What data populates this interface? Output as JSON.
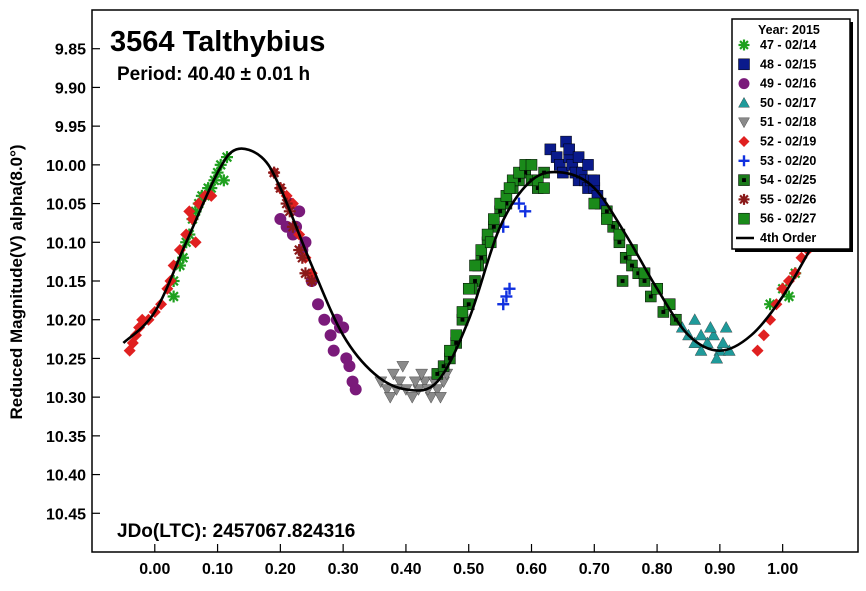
{
  "chart_data": {
    "type": "scatter",
    "title": "3564 Talthybius",
    "period_text": "Period: 40.40 ± 0.01 h",
    "epoch_text": "JDo(LTC): 2457067.824316",
    "ylabel": "Reduced Magnitude(V) alpha(8.0°)",
    "xlabel": "",
    "xlim": [
      -0.1,
      1.12
    ],
    "ylim": [
      10.5,
      9.8
    ],
    "y_inverted": true,
    "grid": false,
    "legend_position": "top-right",
    "legend_title": "Year: 2015",
    "x_ticks": [
      0.0,
      0.1,
      0.2,
      0.3,
      0.4,
      0.5,
      0.6,
      0.7,
      0.8,
      0.9,
      1.0
    ],
    "x_tick_labels": [
      "0.00",
      "0.10",
      "0.20",
      "0.30",
      "0.40",
      "0.50",
      "0.60",
      "0.70",
      "0.80",
      "0.90",
      "1.00"
    ],
    "y_ticks": [
      9.85,
      9.9,
      9.95,
      10.0,
      10.05,
      10.1,
      10.15,
      10.2,
      10.25,
      10.3,
      10.35,
      10.4,
      10.45
    ],
    "y_tick_labels": [
      "9.85",
      "9.90",
      "9.95",
      "10.00",
      "10.05",
      "10.10",
      "10.15",
      "10.20",
      "10.25",
      "10.30",
      "10.35",
      "10.40",
      "10.45"
    ],
    "series": [
      {
        "name": "47 - 02/14",
        "marker": "asterisk",
        "color": "#1fa01f",
        "points": [
          [
            0.03,
            10.15
          ],
          [
            0.045,
            10.12
          ],
          [
            0.055,
            10.09
          ],
          [
            0.065,
            10.06
          ],
          [
            0.075,
            10.04
          ],
          [
            0.085,
            10.03
          ],
          [
            0.095,
            10.02
          ],
          [
            0.105,
            10.0
          ],
          [
            0.115,
            9.99
          ],
          [
            0.05,
            10.1
          ],
          [
            0.06,
            10.07
          ],
          [
            0.07,
            10.05
          ],
          [
            0.08,
            10.04
          ],
          [
            0.09,
            10.03
          ],
          [
            0.1,
            10.01
          ],
          [
            0.11,
            10.02
          ],
          [
            1.0,
            10.16
          ],
          [
            1.01,
            10.17
          ],
          [
            0.98,
            10.18
          ],
          [
            1.02,
            10.14
          ],
          [
            0.03,
            10.17
          ],
          [
            0.04,
            10.13
          ]
        ]
      },
      {
        "name": "48 - 02/15",
        "marker": "square",
        "color": "#0a1a8c",
        "points": [
          [
            0.63,
            9.98
          ],
          [
            0.64,
            9.99
          ],
          [
            0.645,
            10.0
          ],
          [
            0.65,
            10.01
          ],
          [
            0.655,
            9.97
          ],
          [
            0.66,
            9.99
          ],
          [
            0.665,
            10.0
          ],
          [
            0.67,
            10.01
          ],
          [
            0.675,
            10.02
          ],
          [
            0.68,
            10.01
          ],
          [
            0.685,
            10.02
          ],
          [
            0.69,
            10.03
          ],
          [
            0.695,
            10.02
          ],
          [
            0.7,
            10.03
          ],
          [
            0.705,
            10.04
          ],
          [
            0.71,
            10.05
          ],
          [
            0.66,
            9.98
          ],
          [
            0.675,
            9.99
          ],
          [
            0.69,
            10.0
          ],
          [
            0.7,
            10.02
          ]
        ]
      },
      {
        "name": "49 - 02/16",
        "marker": "circle",
        "color": "#7a1a7a",
        "points": [
          [
            0.2,
            10.07
          ],
          [
            0.21,
            10.08
          ],
          [
            0.22,
            10.09
          ],
          [
            0.23,
            10.06
          ],
          [
            0.24,
            10.1
          ],
          [
            0.25,
            10.15
          ],
          [
            0.26,
            10.18
          ],
          [
            0.27,
            10.2
          ],
          [
            0.28,
            10.22
          ],
          [
            0.29,
            10.2
          ],
          [
            0.3,
            10.21
          ],
          [
            0.305,
            10.25
          ],
          [
            0.31,
            10.26
          ],
          [
            0.315,
            10.28
          ],
          [
            0.32,
            10.29
          ],
          [
            0.285,
            10.24
          ],
          [
            0.295,
            10.21
          ],
          [
            0.215,
            10.05
          ],
          [
            0.225,
            10.08
          ],
          [
            0.235,
            10.11
          ]
        ]
      },
      {
        "name": "50 - 02/17",
        "marker": "triangle-up",
        "color": "#1f9a9a",
        "points": [
          [
            0.83,
            10.2
          ],
          [
            0.84,
            10.21
          ],
          [
            0.85,
            10.22
          ],
          [
            0.86,
            10.2
          ],
          [
            0.87,
            10.22
          ],
          [
            0.88,
            10.23
          ],
          [
            0.89,
            10.22
          ],
          [
            0.9,
            10.24
          ],
          [
            0.905,
            10.23
          ],
          [
            0.91,
            10.21
          ],
          [
            0.915,
            10.24
          ],
          [
            0.87,
            10.24
          ],
          [
            0.895,
            10.25
          ],
          [
            0.885,
            10.21
          ],
          [
            0.86,
            10.23
          ]
        ]
      },
      {
        "name": "51 - 02/18",
        "marker": "triangle-down",
        "color": "#8a8a8a",
        "points": [
          [
            0.36,
            10.28
          ],
          [
            0.37,
            10.29
          ],
          [
            0.38,
            10.27
          ],
          [
            0.39,
            10.28
          ],
          [
            0.4,
            10.29
          ],
          [
            0.41,
            10.3
          ],
          [
            0.42,
            10.29
          ],
          [
            0.43,
            10.28
          ],
          [
            0.44,
            10.3
          ],
          [
            0.45,
            10.29
          ],
          [
            0.46,
            10.28
          ],
          [
            0.465,
            10.27
          ],
          [
            0.375,
            10.3
          ],
          [
            0.395,
            10.26
          ],
          [
            0.415,
            10.28
          ],
          [
            0.435,
            10.29
          ],
          [
            0.455,
            10.3
          ],
          [
            0.385,
            10.29
          ],
          [
            0.425,
            10.27
          ],
          [
            0.445,
            10.28
          ]
        ]
      },
      {
        "name": "52 - 02/19",
        "marker": "diamond",
        "color": "#e02020",
        "points": [
          [
            -0.04,
            10.24
          ],
          [
            -0.035,
            10.23
          ],
          [
            -0.03,
            10.22
          ],
          [
            -0.025,
            10.21
          ],
          [
            -0.02,
            10.2
          ],
          [
            -0.01,
            10.2
          ],
          [
            0.0,
            10.19
          ],
          [
            0.01,
            10.18
          ],
          [
            0.02,
            10.16
          ],
          [
            0.025,
            10.15
          ],
          [
            0.03,
            10.13
          ],
          [
            0.04,
            10.11
          ],
          [
            0.05,
            10.09
          ],
          [
            0.06,
            10.07
          ],
          [
            0.07,
            10.05
          ],
          [
            0.08,
            10.04
          ],
          [
            0.09,
            10.04
          ],
          [
            0.19,
            10.01
          ],
          [
            0.2,
            10.03
          ],
          [
            0.21,
            10.04
          ],
          [
            0.22,
            10.05
          ],
          [
            0.23,
            10.09
          ],
          [
            0.24,
            10.12
          ],
          [
            0.25,
            10.14
          ],
          [
            0.96,
            10.24
          ],
          [
            0.97,
            10.22
          ],
          [
            0.98,
            10.2
          ],
          [
            0.99,
            10.18
          ],
          [
            1.0,
            10.16
          ],
          [
            1.01,
            10.15
          ],
          [
            1.02,
            10.14
          ],
          [
            1.03,
            10.12
          ],
          [
            1.04,
            10.11
          ],
          [
            0.055,
            10.06
          ],
          [
            0.065,
            10.1
          ]
        ]
      },
      {
        "name": "53 - 02/20",
        "marker": "plus",
        "color": "#1030e0",
        "points": [
          [
            0.555,
            10.08
          ],
          [
            0.56,
            10.17
          ],
          [
            0.565,
            10.16
          ],
          [
            0.555,
            10.18
          ],
          [
            0.58,
            10.05
          ],
          [
            0.59,
            10.06
          ]
        ]
      },
      {
        "name": "54 - 02/25",
        "marker": "square-dot",
        "color": "#1a7a1a",
        "points": [
          [
            0.45,
            10.27
          ],
          [
            0.46,
            10.26
          ],
          [
            0.47,
            10.25
          ],
          [
            0.48,
            10.23
          ],
          [
            0.49,
            10.2
          ],
          [
            0.5,
            10.18
          ],
          [
            0.51,
            10.15
          ],
          [
            0.52,
            10.12
          ],
          [
            0.53,
            10.1
          ],
          [
            0.54,
            10.08
          ],
          [
            0.55,
            10.06
          ],
          [
            0.56,
            10.05
          ],
          [
            0.57,
            10.03
          ],
          [
            0.58,
            10.02
          ],
          [
            0.59,
            10.01
          ],
          [
            0.6,
            10.02
          ],
          [
            0.61,
            10.03
          ],
          [
            0.62,
            10.01
          ],
          [
            0.72,
            10.06
          ],
          [
            0.73,
            10.08
          ],
          [
            0.74,
            10.1
          ],
          [
            0.75,
            10.12
          ],
          [
            0.76,
            10.13
          ],
          [
            0.77,
            10.14
          ],
          [
            0.78,
            10.15
          ],
          [
            0.79,
            10.17
          ],
          [
            0.8,
            10.16
          ],
          [
            0.81,
            10.19
          ],
          [
            0.82,
            10.18
          ],
          [
            0.83,
            10.2
          ],
          [
            0.505,
            10.16
          ],
          [
            0.515,
            10.13
          ],
          [
            0.745,
            10.15
          ]
        ]
      },
      {
        "name": "55 - 02/26",
        "marker": "asterisk",
        "color": "#8a1a1a",
        "points": [
          [
            0.19,
            10.01
          ],
          [
            0.2,
            10.03
          ],
          [
            0.21,
            10.05
          ],
          [
            0.22,
            10.08
          ],
          [
            0.23,
            10.11
          ],
          [
            0.24,
            10.14
          ],
          [
            0.25,
            10.15
          ],
          [
            0.215,
            10.06
          ],
          [
            0.235,
            10.12
          ]
        ]
      },
      {
        "name": "56 - 02/27",
        "marker": "square",
        "color": "#1a8a1a",
        "points": [
          [
            0.47,
            10.24
          ],
          [
            0.48,
            10.22
          ],
          [
            0.49,
            10.19
          ],
          [
            0.5,
            10.16
          ],
          [
            0.51,
            10.13
          ],
          [
            0.52,
            10.11
          ],
          [
            0.53,
            10.09
          ],
          [
            0.54,
            10.07
          ],
          [
            0.55,
            10.05
          ],
          [
            0.56,
            10.04
          ],
          [
            0.57,
            10.02
          ],
          [
            0.58,
            10.01
          ],
          [
            0.59,
            10.0
          ],
          [
            0.6,
            10.0
          ],
          [
            0.61,
            10.02
          ],
          [
            0.62,
            10.03
          ],
          [
            0.7,
            10.05
          ],
          [
            0.72,
            10.07
          ],
          [
            0.74,
            10.09
          ],
          [
            0.76,
            10.11
          ],
          [
            0.78,
            10.14
          ],
          [
            0.8,
            10.16
          ],
          [
            0.82,
            10.18
          ],
          [
            0.535,
            10.1
          ],
          [
            0.565,
            10.03
          ]
        ]
      }
    ],
    "fit": {
      "name": "4th Order",
      "color": "#000000",
      "points": [
        [
          -0.05,
          10.23
        ],
        [
          0.0,
          10.19
        ],
        [
          0.05,
          10.1
        ],
        [
          0.1,
          10.01
        ],
        [
          0.13,
          9.98
        ],
        [
          0.17,
          9.99
        ],
        [
          0.2,
          10.03
        ],
        [
          0.25,
          10.13
        ],
        [
          0.3,
          10.22
        ],
        [
          0.35,
          10.27
        ],
        [
          0.4,
          10.29
        ],
        [
          0.45,
          10.28
        ],
        [
          0.5,
          10.2
        ],
        [
          0.55,
          10.08
        ],
        [
          0.6,
          10.02
        ],
        [
          0.65,
          10.01
        ],
        [
          0.7,
          10.03
        ],
        [
          0.75,
          10.09
        ],
        [
          0.8,
          10.16
        ],
        [
          0.85,
          10.22
        ],
        [
          0.9,
          10.24
        ],
        [
          0.95,
          10.22
        ],
        [
          1.0,
          10.17
        ],
        [
          1.05,
          10.1
        ]
      ]
    }
  }
}
